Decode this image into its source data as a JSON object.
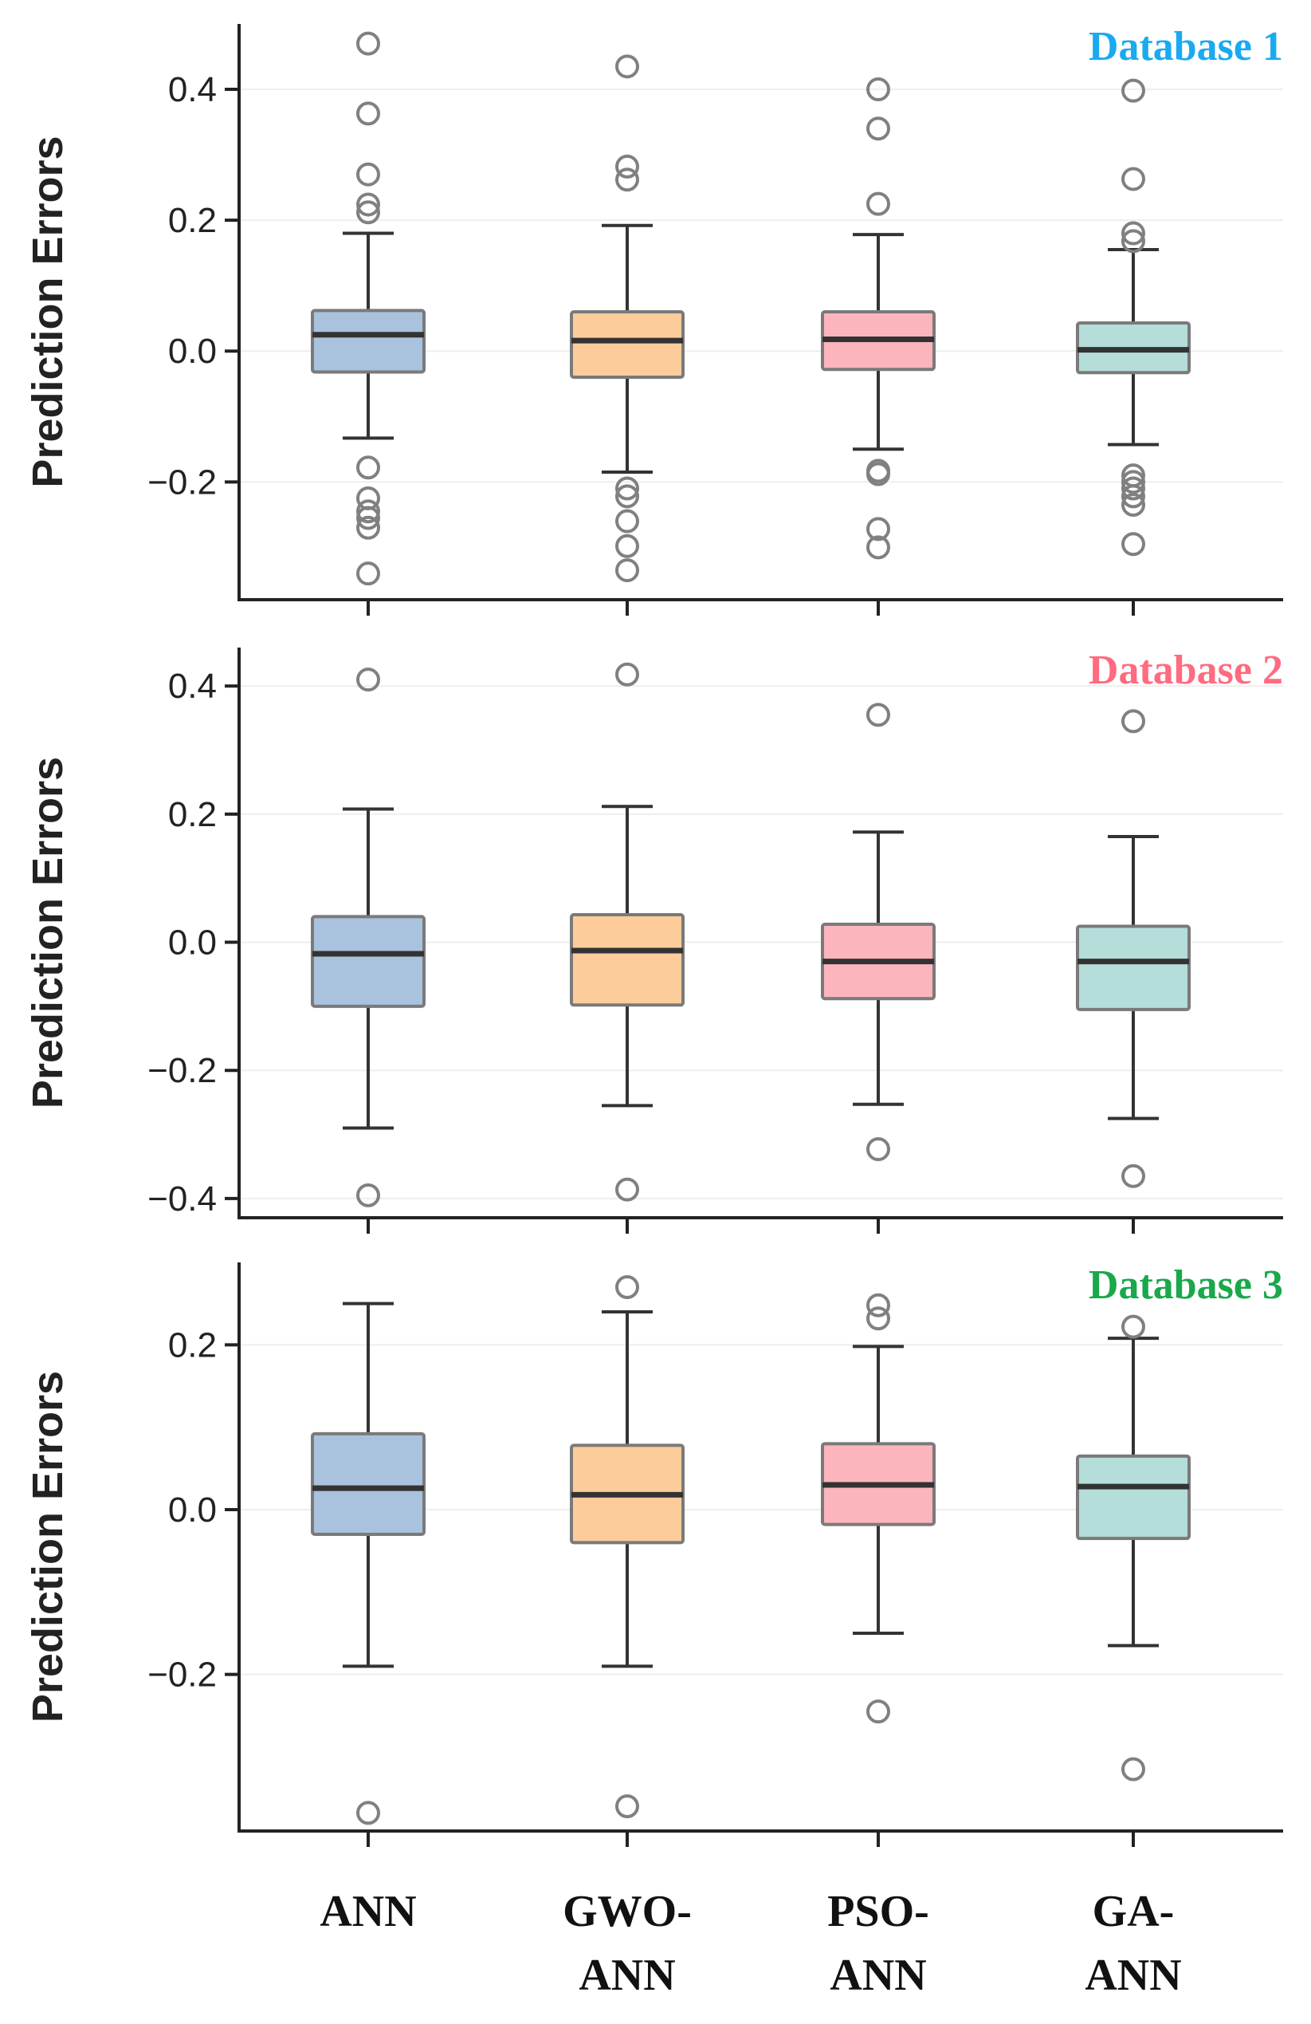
{
  "chart_data": {
    "type": "box",
    "categories": [
      {
        "lines": [
          "ANN"
        ]
      },
      {
        "lines": [
          "GWO-",
          "ANN"
        ]
      },
      {
        "lines": [
          "PSO-",
          "ANN"
        ]
      },
      {
        "lines": [
          "GA-",
          "ANN"
        ]
      }
    ],
    "colors": {
      "ANN": "#a9c2dd",
      "GWO-ANN": "#fdcc9b",
      "PSO-ANN": "#fdb5bd",
      "GA-ANN": "#b5ddd9"
    },
    "grid": true,
    "panels": [
      {
        "title": "Database 1",
        "title_color": "#1aaaef",
        "ylabel": "Prediction Errors",
        "ylim": [
          -0.38,
          0.5
        ],
        "yticks": [
          -0.2,
          0.0,
          0.2,
          0.4
        ],
        "ytick_labels": [
          "−0.2",
          "0.0",
          "0.2",
          "0.4"
        ],
        "boxes": [
          {
            "category": "ANN",
            "whisker_low": -0.133,
            "q1": -0.032,
            "median": 0.025,
            "q3": 0.062,
            "whisker_high": 0.18,
            "outliers": [
              0.47,
              0.363,
              0.27,
              0.224,
              0.212,
              -0.178,
              -0.225,
              -0.245,
              -0.255,
              -0.27,
              -0.34
            ]
          },
          {
            "category": "GWO-ANN",
            "whisker_low": -0.185,
            "q1": -0.04,
            "median": 0.016,
            "q3": 0.06,
            "whisker_high": 0.192,
            "outliers": [
              0.435,
              0.282,
              0.262,
              -0.21,
              -0.222,
              -0.26,
              -0.298,
              -0.335
            ]
          },
          {
            "category": "PSO-ANN",
            "whisker_low": -0.15,
            "q1": -0.028,
            "median": 0.018,
            "q3": 0.06,
            "whisker_high": 0.178,
            "outliers": [
              0.4,
              0.34,
              0.225,
              -0.183,
              -0.188,
              -0.272,
              -0.3
            ]
          },
          {
            "category": "GA-ANN",
            "whisker_low": -0.143,
            "q1": -0.033,
            "median": 0.002,
            "q3": 0.043,
            "whisker_high": 0.155,
            "outliers": [
              0.398,
              0.263,
              0.18,
              0.168,
              -0.19,
              -0.2,
              -0.21,
              -0.222,
              -0.235,
              -0.295
            ]
          }
        ]
      },
      {
        "title": "Database 2",
        "title_color": "#ff6b7f",
        "ylabel": "Prediction Errors",
        "ylim": [
          -0.43,
          0.46
        ],
        "yticks": [
          -0.4,
          -0.2,
          0.0,
          0.2,
          0.4
        ],
        "ytick_labels": [
          "−0.4",
          "−0.2",
          "0.0",
          "0.2",
          "0.4"
        ],
        "boxes": [
          {
            "category": "ANN",
            "whisker_low": -0.29,
            "q1": -0.1,
            "median": -0.018,
            "q3": 0.04,
            "whisker_high": 0.208,
            "outliers": [
              0.41,
              -0.395
            ]
          },
          {
            "category": "GWO-ANN",
            "whisker_low": -0.255,
            "q1": -0.098,
            "median": -0.013,
            "q3": 0.043,
            "whisker_high": 0.212,
            "outliers": [
              0.418,
              -0.386
            ]
          },
          {
            "category": "PSO-ANN",
            "whisker_low": -0.253,
            "q1": -0.088,
            "median": -0.03,
            "q3": 0.028,
            "whisker_high": 0.172,
            "outliers": [
              0.355,
              -0.323
            ]
          },
          {
            "category": "GA-ANN",
            "whisker_low": -0.275,
            "q1": -0.105,
            "median": -0.03,
            "q3": 0.025,
            "whisker_high": 0.165,
            "outliers": [
              0.345,
              -0.365
            ]
          }
        ]
      },
      {
        "title": "Database 3",
        "title_color": "#1aa84a",
        "ylabel": "Prediction Errors",
        "ylim": [
          -0.39,
          0.3
        ],
        "yticks": [
          -0.2,
          0.0,
          0.2
        ],
        "ytick_labels": [
          "−0.2",
          "0.0",
          "0.2"
        ],
        "boxes": [
          {
            "category": "ANN",
            "whisker_low": -0.19,
            "q1": -0.03,
            "median": 0.026,
            "q3": 0.092,
            "whisker_high": 0.25,
            "outliers": [
              -0.368
            ]
          },
          {
            "category": "GWO-ANN",
            "whisker_low": -0.19,
            "q1": -0.04,
            "median": 0.018,
            "q3": 0.078,
            "whisker_high": 0.24,
            "outliers": [
              0.27,
              -0.36
            ]
          },
          {
            "category": "PSO-ANN",
            "whisker_low": -0.15,
            "q1": -0.018,
            "median": 0.03,
            "q3": 0.08,
            "whisker_high": 0.198,
            "outliers": [
              0.248,
              0.232,
              -0.245
            ]
          },
          {
            "category": "GA-ANN",
            "whisker_low": -0.165,
            "q1": -0.035,
            "median": 0.028,
            "q3": 0.065,
            "whisker_high": 0.208,
            "outliers": [
              0.222,
              -0.315
            ]
          }
        ]
      }
    ]
  }
}
